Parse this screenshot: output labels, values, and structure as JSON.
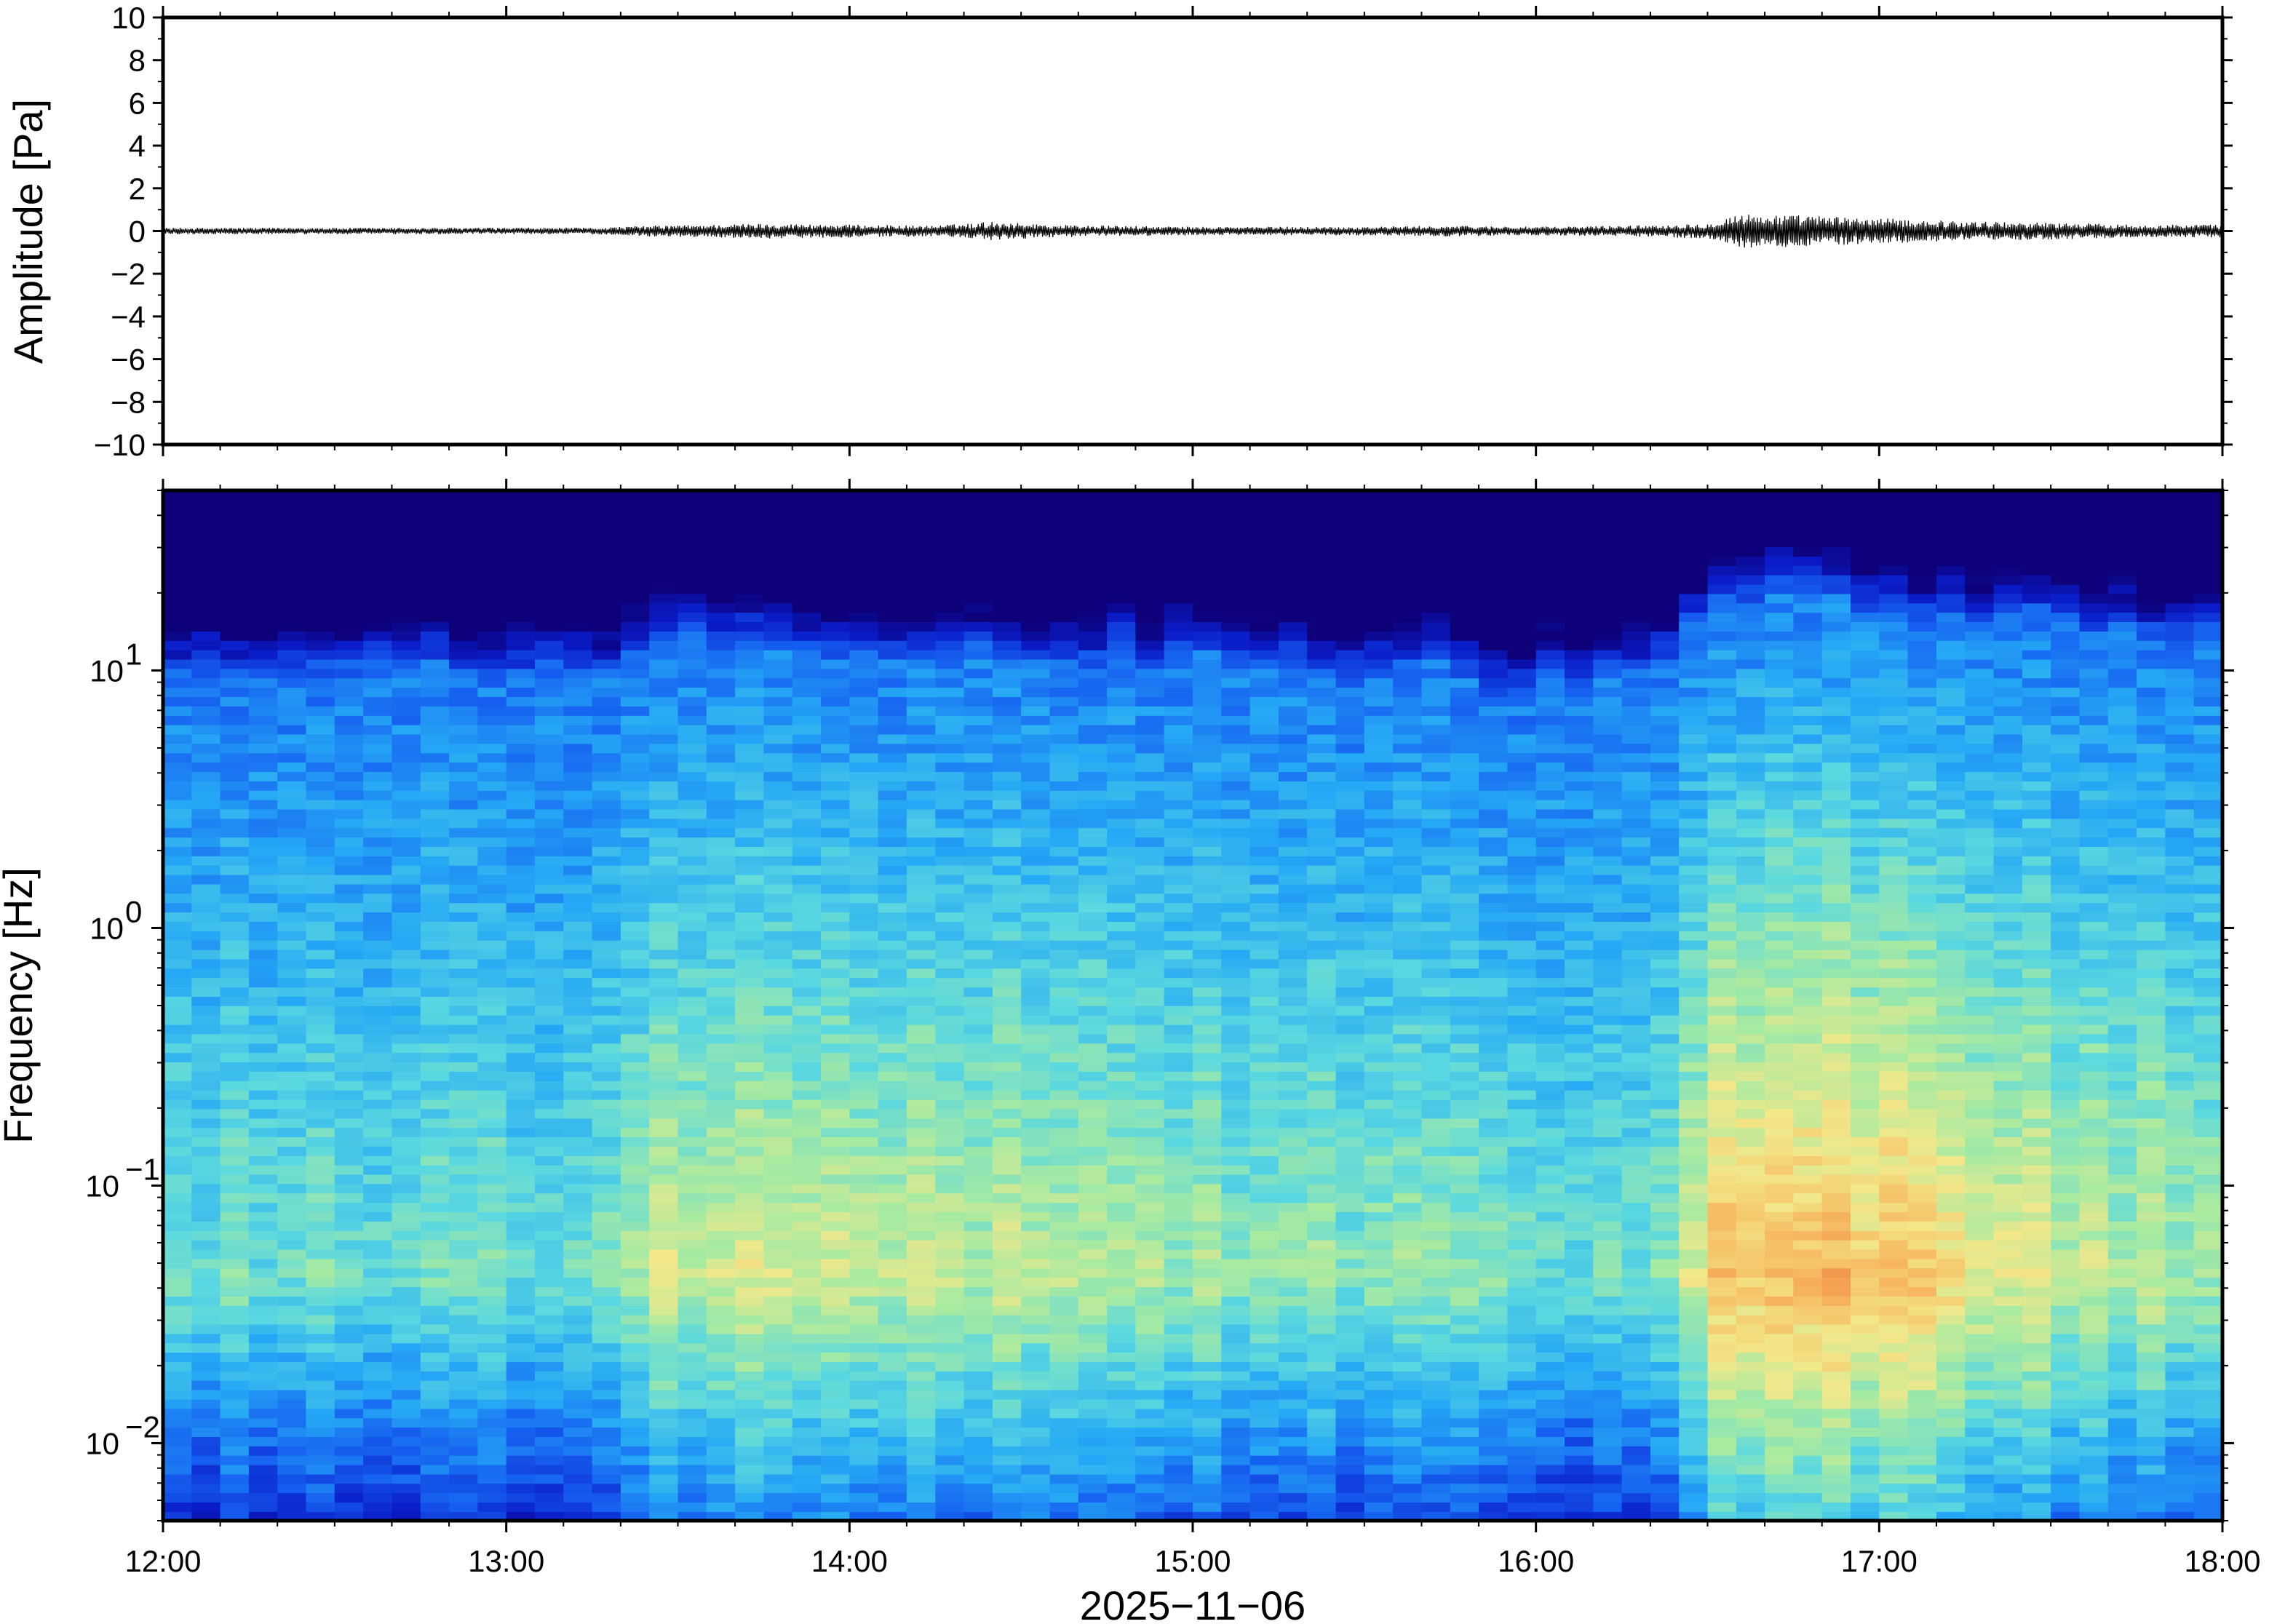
{
  "chart_data": [
    {
      "type": "line",
      "name": "waveform",
      "ylabel": "Amplitude [Pa]",
      "ylim": [
        -10,
        10
      ],
      "yticks": [
        10,
        8,
        6,
        4,
        2,
        0,
        -2,
        -4,
        -6,
        -8,
        -10
      ],
      "ytick_labels": [
        "10",
        "8",
        "6",
        "4",
        "2",
        "0",
        "−2",
        "−4",
        "−6",
        "−8",
        "−10"
      ],
      "xlim": [
        "2025-11-06T12:00",
        "2025-11-06T18:00"
      ],
      "envelope": {
        "x": [
          "12:00",
          "12:15",
          "12:30",
          "12:45",
          "13:00",
          "13:15",
          "13:25",
          "13:35",
          "13:45",
          "14:00",
          "14:15",
          "14:25",
          "14:35",
          "14:45",
          "15:00",
          "15:15",
          "15:30",
          "15:45",
          "16:00",
          "16:15",
          "16:30",
          "16:35",
          "16:45",
          "17:00",
          "17:15",
          "17:30",
          "17:45",
          "18:00"
        ],
        "half_width_pa": [
          0.15,
          0.15,
          0.15,
          0.15,
          0.15,
          0.15,
          0.25,
          0.3,
          0.35,
          0.3,
          0.25,
          0.45,
          0.3,
          0.25,
          0.2,
          0.2,
          0.2,
          0.25,
          0.2,
          0.25,
          0.35,
          0.8,
          0.75,
          0.6,
          0.45,
          0.4,
          0.3,
          0.3
        ]
      },
      "color": "#000000"
    },
    {
      "type": "heatmap",
      "name": "spectrogram",
      "ylabel": "Frequency [Hz]",
      "yscale": "log",
      "ylim_hz": [
        0.005,
        50
      ],
      "yticks": [
        10,
        1,
        0.1,
        0.01
      ],
      "ytick_labels": [
        {
          "base": "10",
          "exp": "1"
        },
        {
          "base": "10",
          "exp": "0"
        },
        {
          "base": "10",
          "exp": "−1"
        },
        {
          "base": "10",
          "exp": "−2"
        }
      ],
      "xlim": [
        "2025-11-06T12:00",
        "2025-11-06T18:00"
      ],
      "xticks": [
        "12:00",
        "13:00",
        "14:00",
        "15:00",
        "16:00",
        "17:00",
        "18:00"
      ],
      "xlabel": "2025−11−06",
      "colormap": "jet",
      "colormap_stops": [
        "#0d0078",
        "#0a1cc8",
        "#1660f0",
        "#25a8f5",
        "#5ad8e0",
        "#a6eaa2",
        "#f2e88a",
        "#f7b860",
        "#ee7a40"
      ],
      "upper_cutoff_hz": {
        "x": [
          "12:00",
          "12:30",
          "13:00",
          "13:20",
          "13:25",
          "14:00",
          "14:30",
          "15:00",
          "15:30",
          "15:45",
          "15:50",
          "16:00",
          "16:20",
          "16:30",
          "16:45",
          "17:00",
          "17:30",
          "18:00"
        ],
        "hz": [
          13,
          14,
          13,
          13,
          17,
          16,
          15,
          15,
          13,
          17,
          11,
          12,
          12,
          25,
          26,
          22,
          20,
          17
        ]
      },
      "intensity_by_time": {
        "x": [
          "12:00",
          "12:30",
          "13:00",
          "13:20",
          "13:25",
          "14:00",
          "14:30",
          "15:00",
          "15:30",
          "16:00",
          "16:20",
          "16:30",
          "17:00",
          "17:30",
          "18:00"
        ],
        "relative_level": [
          0.55,
          0.55,
          0.55,
          0.55,
          0.68,
          0.7,
          0.68,
          0.62,
          0.6,
          0.55,
          0.55,
          0.82,
          0.85,
          0.7,
          0.62
        ]
      }
    }
  ]
}
